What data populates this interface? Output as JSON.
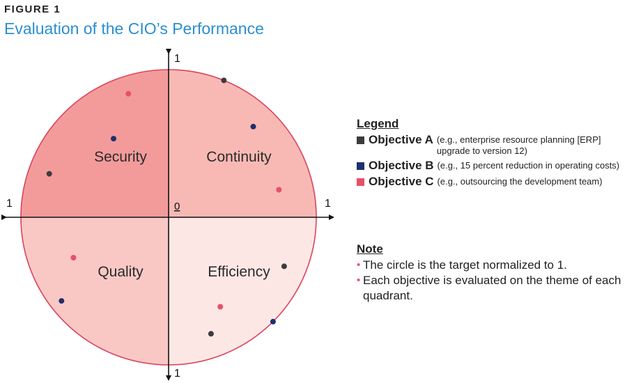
{
  "figure_label": "FIGURE 1",
  "title": "Evaluation of the CIO’s Performance",
  "chart_data": {
    "type": "scatter",
    "subtype": "polar-quadrant",
    "title": "Evaluation of the CIO’s Performance",
    "axes": {
      "top_label": "1",
      "bottom_label": "1",
      "left_label": "1",
      "right_label": "1",
      "origin_label": "0",
      "range": [
        0,
        1
      ]
    },
    "target_radius": 1,
    "quadrants": [
      {
        "name": "Security",
        "position": "top-left",
        "color": "#f39b9b"
      },
      {
        "name": "Continuity",
        "position": "top-right",
        "color": "#f8b9b4"
      },
      {
        "name": "Quality",
        "position": "bottom-left",
        "color": "#f9c8c5"
      },
      {
        "name": "Efficiency",
        "position": "bottom-right",
        "color": "#fde7e5"
      }
    ],
    "series": [
      {
        "name": "Objective A",
        "color": "#3c3c3c",
        "points": [
          {
            "quadrant": "Continuity",
            "angle_deg": 68,
            "radius": 1.0
          },
          {
            "quadrant": "Security",
            "angle_deg": 160,
            "radius": 0.86
          },
          {
            "quadrant": "Quality",
            "angle_deg": 290,
            "radius": 0.84
          },
          {
            "quadrant": "Efficiency",
            "angle_deg": 337,
            "radius": 0.85
          }
        ]
      },
      {
        "name": "Objective B",
        "color": "#1f2f6e",
        "points": [
          {
            "quadrant": "Continuity",
            "angle_deg": 47,
            "radius": 0.84
          },
          {
            "quadrant": "Security",
            "angle_deg": 125,
            "radius": 0.65
          },
          {
            "quadrant": "Quality",
            "angle_deg": 218,
            "radius": 0.92
          },
          {
            "quadrant": "Efficiency",
            "angle_deg": 315,
            "radius": 1.0
          }
        ]
      },
      {
        "name": "Objective C",
        "color": "#e8506a",
        "points": [
          {
            "quadrant": "Continuity",
            "angle_deg": 14,
            "radius": 0.77
          },
          {
            "quadrant": "Security",
            "angle_deg": 108,
            "radius": 0.88
          },
          {
            "quadrant": "Quality",
            "angle_deg": 203,
            "radius": 0.7
          },
          {
            "quadrant": "Efficiency",
            "angle_deg": 300,
            "radius": 0.7
          }
        ]
      }
    ]
  },
  "legend": {
    "heading": "Legend",
    "items": [
      {
        "name": "Objective A",
        "desc": "(e.g., enterprise resource planning [ERP] upgrade to version 12)",
        "color": "#3c3c3c"
      },
      {
        "name": "Objective B",
        "desc": "(e.g., 15 percent reduction in operating costs)",
        "color": "#1f2f6e"
      },
      {
        "name": "Objective C",
        "desc": "(e.g., outsourcing the development team)",
        "color": "#e8506a"
      }
    ]
  },
  "note": {
    "heading": "Note",
    "lines": [
      "The circle is the target normalized to 1.",
      "Each objective is evaluated on the theme of each quadrant."
    ]
  }
}
